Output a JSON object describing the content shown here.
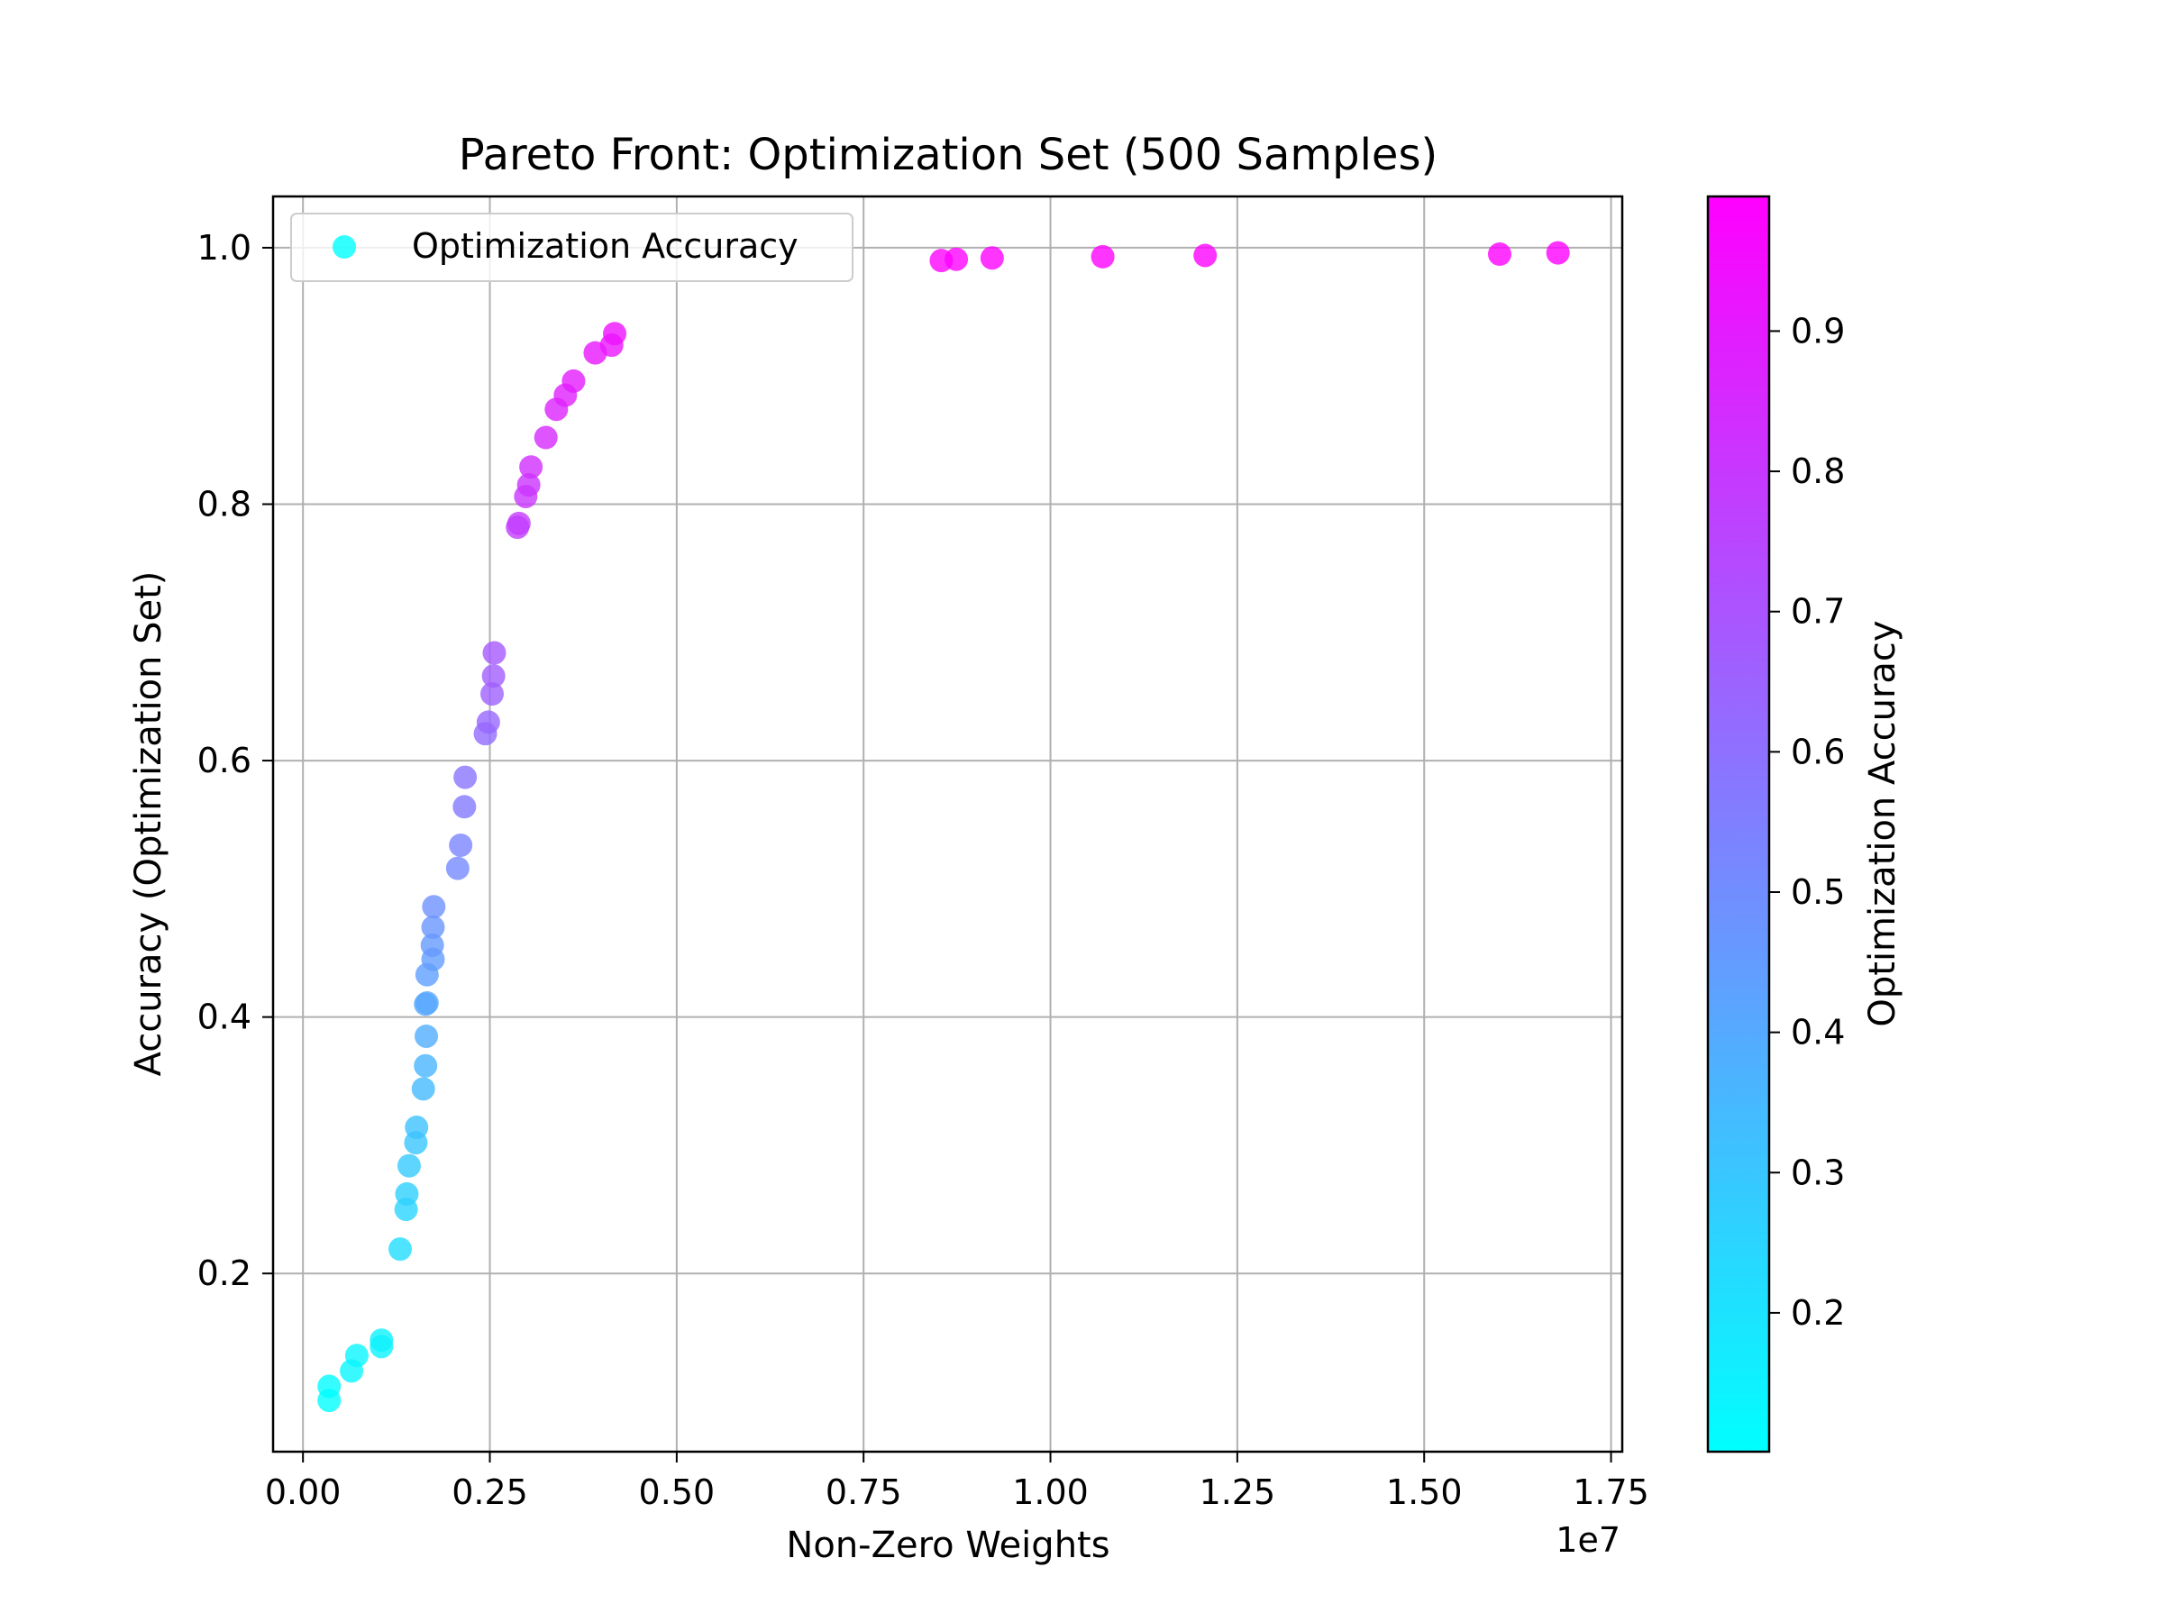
{
  "chart_data": {
    "type": "scatter",
    "title": "Pareto Front: Optimization Set (500 Samples)",
    "xlabel": "Non-Zero Weights",
    "ylabel": "Accuracy (Optimization Set)",
    "x_offset_text": "1e7",
    "xlim": [
      -400000,
      17650000
    ],
    "ylim": [
      0.061,
      1.04
    ],
    "xticks": [
      0,
      2500000,
      5000000,
      7500000,
      10000000,
      12500000,
      15000000,
      17500000
    ],
    "xtick_labels": [
      "0.00",
      "0.25",
      "0.50",
      "0.75",
      "1.00",
      "1.25",
      "1.50",
      "1.75"
    ],
    "yticks": [
      0.2,
      0.4,
      0.6,
      0.8,
      1.0
    ],
    "ytick_labels": [
      "0.2",
      "0.4",
      "0.6",
      "0.8",
      "1.0"
    ],
    "grid": true,
    "legend": {
      "position": "top-left",
      "entries": [
        "Optimization Accuracy"
      ]
    },
    "colorbar": {
      "label": "Optimization Accuracy",
      "colormap": "cool",
      "range": [
        0.101,
        0.996
      ],
      "ticks": [
        0.2,
        0.3,
        0.4,
        0.5,
        0.6,
        0.7,
        0.8,
        0.9
      ],
      "tick_labels": [
        "0.2",
        "0.3",
        "0.4",
        "0.5",
        "0.6",
        "0.7",
        "0.8",
        "0.9"
      ]
    },
    "colors": {
      "cmap_low": "#00ffff",
      "cmap_high": "#ff00ff",
      "grid": "#b0b0b0"
    },
    "series": [
      {
        "name": "Optimization Accuracy",
        "points": [
          [
            350000,
            0.101
          ],
          [
            350000,
            0.112
          ],
          [
            650000,
            0.124
          ],
          [
            720000,
            0.136
          ],
          [
            1050000,
            0.143
          ],
          [
            1050000,
            0.148
          ],
          [
            1300000,
            0.219
          ],
          [
            1380000,
            0.25
          ],
          [
            1390000,
            0.262
          ],
          [
            1420000,
            0.284
          ],
          [
            1510000,
            0.302
          ],
          [
            1520000,
            0.314
          ],
          [
            1610000,
            0.344
          ],
          [
            1640000,
            0.362
          ],
          [
            1650000,
            0.385
          ],
          [
            1640000,
            0.41
          ],
          [
            1660000,
            0.411
          ],
          [
            1660000,
            0.433
          ],
          [
            1740000,
            0.445
          ],
          [
            1730000,
            0.456
          ],
          [
            1740000,
            0.47
          ],
          [
            1750000,
            0.486
          ],
          [
            2070000,
            0.516
          ],
          [
            2110000,
            0.534
          ],
          [
            2160000,
            0.564
          ],
          [
            2170000,
            0.587
          ],
          [
            2440000,
            0.621
          ],
          [
            2480000,
            0.63
          ],
          [
            2530000,
            0.652
          ],
          [
            2550000,
            0.666
          ],
          [
            2560000,
            0.684
          ],
          [
            2870000,
            0.782
          ],
          [
            2890000,
            0.785
          ],
          [
            2980000,
            0.806
          ],
          [
            3020000,
            0.815
          ],
          [
            3050000,
            0.829
          ],
          [
            3250000,
            0.852
          ],
          [
            3390000,
            0.874
          ],
          [
            3510000,
            0.885
          ],
          [
            3620000,
            0.896
          ],
          [
            3910000,
            0.918
          ],
          [
            4130000,
            0.924
          ],
          [
            4170000,
            0.933
          ],
          [
            8540000,
            0.99
          ],
          [
            8740000,
            0.991
          ],
          [
            9220000,
            0.992
          ],
          [
            10700000,
            0.993
          ],
          [
            12070000,
            0.994
          ],
          [
            16010000,
            0.995
          ],
          [
            16790000,
            0.996
          ]
        ]
      }
    ]
  }
}
